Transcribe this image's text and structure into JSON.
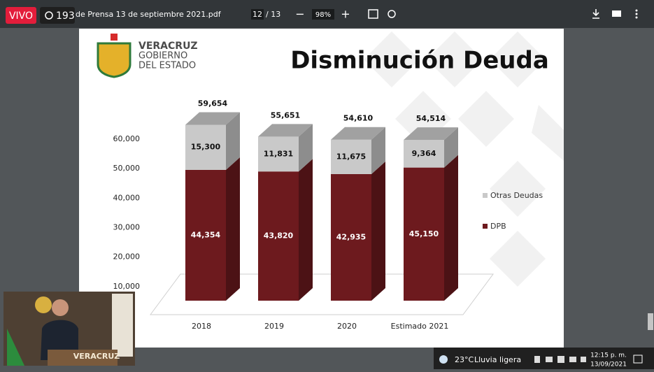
{
  "toolbar": {
    "live": "VIVO",
    "viewers": "193",
    "filename": "de Prensa 13 de septiembre 2021.pdf",
    "page": "12",
    "pages": "/ 13",
    "zoom": "98%"
  },
  "slide": {
    "logo": [
      "VERACRUZ",
      "GOBIERNO",
      "DEL ESTADO"
    ]
  },
  "chart_data": {
    "type": "bar3d_stacked",
    "title": "Disminución Deuda",
    "categories": [
      "2018",
      "2019",
      "2020",
      "Estimado 2021"
    ],
    "series": [
      {
        "name": "DPB",
        "color": "#6d1a1e",
        "values": [
          44354,
          43820,
          42935,
          45150
        ],
        "value_labels": [
          "44,354",
          "43,820",
          "42,935",
          "45,150"
        ]
      },
      {
        "name": "Otras Deudas",
        "color": "#c9c9c9",
        "values": [
          15300,
          11831,
          11675,
          9364
        ],
        "value_labels": [
          "15,300",
          "11,831",
          "11,675",
          "9,364"
        ]
      }
    ],
    "totals": {
      "values": [
        59654,
        55651,
        54610,
        54514
      ],
      "value_labels": [
        "59,654",
        "55,651",
        "54,610",
        "54,514"
      ]
    },
    "ylim": [
      0,
      60000
    ],
    "yticks": [
      {
        "value": 10000,
        "label": "10,000"
      },
      {
        "value": 20000,
        "label": "20,000"
      },
      {
        "value": 30000,
        "label": "30,000"
      },
      {
        "value": 40000,
        "label": "40,000"
      },
      {
        "value": 50000,
        "label": "50,000"
      },
      {
        "value": 60000,
        "label": "60,000"
      }
    ]
  },
  "video": {
    "caption": "VERACRUZ"
  },
  "taskbar": {
    "temp": "23°C",
    "weather": "Lluvia ligera",
    "time": "12:15 p. m.",
    "date": "13/09/2021"
  }
}
